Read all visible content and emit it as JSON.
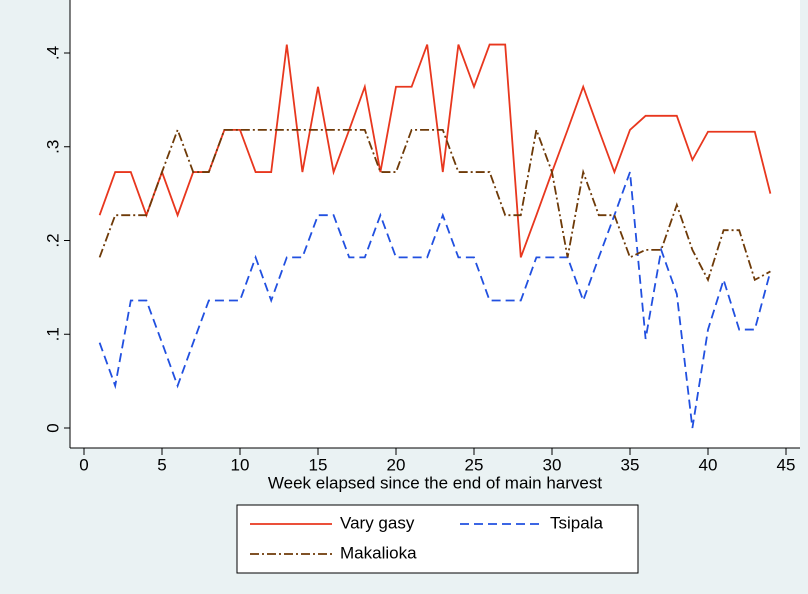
{
  "chart_data": {
    "type": "line",
    "x_label": "Week elapsed since the end of main harvest",
    "x": [
      1,
      2,
      3,
      4,
      5,
      6,
      7,
      8,
      9,
      10,
      11,
      12,
      13,
      14,
      15,
      16,
      17,
      18,
      19,
      20,
      21,
      22,
      23,
      24,
      25,
      26,
      27,
      28,
      29,
      30,
      31,
      32,
      33,
      34,
      35,
      36,
      37,
      38,
      39,
      40,
      41,
      42,
      43,
      44
    ],
    "series": [
      {
        "name": "Vary gasy",
        "color": "#e8371e",
        "dash": "solid",
        "values": [
          0.227,
          0.273,
          0.273,
          0.227,
          0.273,
          0.227,
          0.273,
          0.273,
          0.318,
          0.318,
          0.273,
          0.273,
          0.409,
          0.273,
          0.364,
          0.273,
          0.318,
          0.364,
          0.273,
          0.364,
          0.364,
          0.409,
          0.273,
          0.409,
          0.364,
          0.409,
          0.409,
          0.182,
          0.227,
          0.273,
          0.318,
          0.364,
          0.318,
          0.273,
          0.318,
          0.333,
          0.333,
          0.333,
          0.286,
          0.316,
          0.316,
          0.316,
          0.316,
          0.25
        ]
      },
      {
        "name": "Tsipala",
        "color": "#2150e0",
        "dash": "dashed",
        "values": [
          0.091,
          0.045,
          0.136,
          0.136,
          0.091,
          0.045,
          0.091,
          0.136,
          0.136,
          0.136,
          0.182,
          0.136,
          0.182,
          0.182,
          0.227,
          0.227,
          0.182,
          0.182,
          0.227,
          0.182,
          0.182,
          0.182,
          0.227,
          0.182,
          0.182,
          0.136,
          0.136,
          0.136,
          0.182,
          0.182,
          0.182,
          0.136,
          0.182,
          0.227,
          0.273,
          0.095,
          0.19,
          0.143,
          0,
          0.105,
          0.158,
          0.105,
          0.105,
          0.167
        ]
      },
      {
        "name": "Makalioka",
        "color": "#6e3a08",
        "dash": "dashdot",
        "values": [
          0.182,
          0.227,
          0.227,
          0.227,
          0.273,
          0.318,
          0.273,
          0.273,
          0.318,
          0.318,
          0.318,
          0.318,
          0.318,
          0.318,
          0.318,
          0.318,
          0.318,
          0.318,
          0.273,
          0.273,
          0.318,
          0.318,
          0.318,
          0.273,
          0.273,
          0.273,
          0.227,
          0.227,
          0.318,
          0.273,
          0.182,
          0.273,
          0.227,
          0.227,
          0.182,
          0.19,
          0.19,
          0.238,
          0.19,
          0.158,
          0.211,
          0.211,
          0.158,
          0.167
        ]
      }
    ],
    "xlim": [
      0,
      45
    ],
    "xticks": [
      0,
      5,
      10,
      15,
      20,
      25,
      30,
      35,
      40,
      45
    ],
    "ylim": [
      0,
      0.4
    ],
    "yticks": [
      0,
      {
        "value": 0.1,
        "label": ".1"
      },
      {
        "value": 0.2,
        "label": ".2"
      },
      {
        "value": 0.3,
        "label": ".3"
      },
      {
        "value": 0.4,
        "label": ".4"
      }
    ],
    "grid": false
  }
}
